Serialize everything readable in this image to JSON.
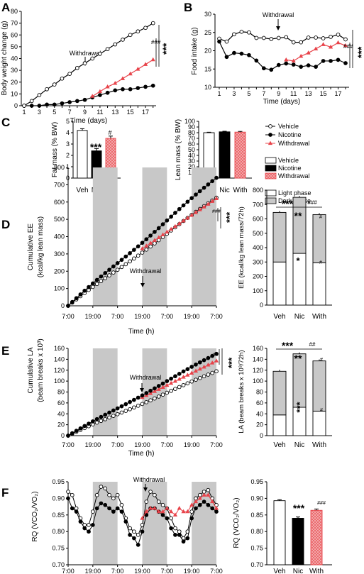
{
  "colors": {
    "vehicle": "#ffffff",
    "nicotine": "#000000",
    "withdrawal": "#e8434a",
    "shade": "#c8c8c8",
    "withdrawal_fill": "#f08a8a"
  },
  "stars3": "***",
  "stars2": "**",
  "hash3": "###",
  "hash2": "##",
  "hash1": "#",
  "star1": "*",
  "legend_lines": [
    "Vehicle",
    "Nicotine",
    "Withdrawal"
  ],
  "legend_bars": [
    "Vehicle",
    "Nicotine",
    "Withdrawal"
  ],
  "legend_phase": [
    "Light phase",
    "Dark phase"
  ],
  "panels": [
    {
      "letter": "A",
      "ylabel": "Body weight change (g)",
      "xlabel": "Time (days)",
      "annotation": "Withdrawal",
      "yticks": [
        "0",
        "10",
        "20",
        "30",
        "40",
        "50",
        "60",
        "70",
        "80"
      ],
      "xticks": [
        "1",
        "3",
        "5",
        "7",
        "9",
        "11",
        "13",
        "15",
        "17"
      ]
    },
    {
      "letter": "B",
      "ylabel": "Food intake (g)",
      "xlabel": "Time (days)",
      "annotation": "Withdrawal",
      "yticks": [
        "10",
        "15",
        "20",
        "25",
        "30"
      ],
      "xticks": [
        "1",
        "3",
        "5",
        "7",
        "9",
        "11",
        "13",
        "15",
        "17"
      ]
    },
    {
      "letter": "C"
    },
    {
      "letter": "D",
      "ylabel": [
        "Cumulative EE",
        "(kcal/kg lean mass)"
      ],
      "xlabel": "Time (h)",
      "annotation": "Withdrawal",
      "yticks": [
        "0",
        "100",
        "200",
        "300",
        "400",
        "500",
        "600",
        "700",
        "800"
      ]
    },
    {
      "letter": "E",
      "ylabel": [
        "Cumulative LA",
        "(beam breaks x 10³)"
      ],
      "xlabel": "Time (h)",
      "annotation": "Withdrawal",
      "yticks": [
        "0",
        "20",
        "40",
        "60",
        "80",
        "100",
        "120",
        "140",
        "160"
      ]
    },
    {
      "letter": "F",
      "ylabel": "RQ (VCO₂/VO₂)",
      "annotation": "Withdrawal",
      "yticks": [
        "0.70",
        "0.75",
        "0.80",
        "0.85",
        "0.90",
        "0.95"
      ]
    }
  ],
  "time_ticks": [
    "7:00",
    "19:00",
    "7:00",
    "19:00",
    "7:00",
    "19:00",
    "7:00"
  ],
  "groups": [
    "Veh",
    "Nic",
    "With"
  ],
  "chart_data": [
    {
      "type": "line",
      "panel": "A",
      "xlabel": "Time (days)",
      "ylabel": "Body weight change (g)",
      "xlim": [
        1,
        18
      ],
      "ylim": [
        0,
        80
      ],
      "series": [
        {
          "name": "Vehicle",
          "x": [
            1,
            2,
            3,
            4,
            5,
            6,
            7,
            8,
            9,
            10,
            11,
            12,
            13,
            14,
            15,
            16,
            17,
            18
          ],
          "values": [
            0,
            4,
            9,
            14,
            18,
            23,
            27,
            32,
            36,
            40,
            44,
            48,
            52,
            56,
            60,
            63,
            66,
            70
          ]
        },
        {
          "name": "Nicotine",
          "x": [
            1,
            2,
            3,
            4,
            5,
            6,
            7,
            8,
            9,
            10,
            11,
            12,
            13,
            14,
            15,
            16,
            17,
            18
          ],
          "values": [
            0,
            0,
            0,
            1,
            1,
            2,
            3,
            4,
            5,
            7,
            9,
            11,
            13,
            14,
            14,
            15,
            16,
            17
          ]
        },
        {
          "name": "Withdrawal",
          "x": [
            10,
            11,
            12,
            13,
            14,
            15,
            16,
            17,
            18
          ],
          "values": [
            8,
            12,
            16,
            19,
            23,
            27,
            31,
            35,
            39
          ]
        }
      ]
    },
    {
      "type": "line",
      "panel": "B",
      "xlabel": "Time (days)",
      "ylabel": "Food intake (g)",
      "xlim": [
        1,
        18
      ],
      "ylim": [
        10,
        30
      ],
      "series": [
        {
          "name": "Vehicle",
          "x": [
            1,
            2,
            3,
            4,
            5,
            6,
            7,
            8,
            9,
            10,
            11,
            12,
            13,
            14,
            15,
            16,
            17,
            18
          ],
          "values": [
            23.3,
            22.5,
            24.5,
            25.2,
            25,
            23.5,
            23.5,
            23.2,
            23.5,
            23.7,
            22.3,
            22.3,
            23.6,
            23.6,
            23.4,
            23.8,
            24.4,
            23.1
          ]
        },
        {
          "name": "Nicotine",
          "x": [
            1,
            2,
            3,
            4,
            5,
            6,
            7,
            8,
            9,
            10,
            11,
            12,
            13,
            14,
            15,
            16,
            17,
            18
          ],
          "values": [
            22.5,
            18.3,
            19.4,
            19.2,
            18.8,
            17.3,
            15.2,
            14.8,
            16.1,
            16.5,
            16.2,
            15.6,
            16.0,
            15.6,
            17.2,
            17.2,
            17.5,
            16.6
          ]
        },
        {
          "name": "Withdrawal",
          "x": [
            10,
            11,
            12,
            13,
            14,
            15,
            16,
            17,
            18
          ],
          "values": [
            17.5,
            17.2,
            18.5,
            19.4,
            20.5,
            21.7,
            21.0,
            22.2,
            21.4
          ]
        }
      ]
    },
    {
      "type": "bar",
      "panel": "C-fat",
      "ylabel": "Fat mass (% BW)",
      "categories": [
        "Veh",
        "Nic",
        "With"
      ],
      "values": [
        4.2,
        2.4,
        3.5
      ],
      "errors": [
        0.15,
        0.2,
        0.2
      ],
      "ylim": [
        0,
        5
      ],
      "yticks": [
        "0",
        "1",
        "2",
        "3",
        "4",
        "5"
      ]
    },
    {
      "type": "bar",
      "panel": "C-lean",
      "ylabel": "Lean mass (% BW)",
      "categories": [
        "Veh",
        "Nic",
        "With"
      ],
      "values": [
        80,
        81.5,
        81
      ],
      "errors": [
        0.8,
        1,
        1.2
      ],
      "ylim": [
        0,
        100
      ],
      "yticks": [
        "0",
        "10",
        "20",
        "30",
        "40",
        "50",
        "60",
        "70",
        "80",
        "90",
        "100"
      ]
    },
    {
      "type": "line",
      "panel": "D",
      "xlabel": "Time (h)",
      "ylabel": "Cumulative EE (kcal/kg lean mass)",
      "ylim": [
        0,
        800
      ],
      "series": [
        {
          "name": "Nicotine",
          "x_hours": [
            0,
            72
          ],
          "values": [
            0,
            740
          ]
        },
        {
          "name": "Vehicle",
          "x_hours": [
            0,
            72
          ],
          "values": [
            0,
            625
          ]
        },
        {
          "name": "Withdrawal",
          "x_hours": [
            36,
            72
          ],
          "values": [
            330,
            620
          ]
        }
      ]
    },
    {
      "type": "bar",
      "panel": "D-bar",
      "ylabel": "EE (kcal/kg lean mass/72h)",
      "categories": [
        "Veh",
        "Nic",
        "With"
      ],
      "ylim": [
        0,
        800
      ],
      "yticks": [
        "0",
        "100",
        "200",
        "300",
        "400",
        "500",
        "600",
        "700",
        "800"
      ],
      "series": [
        {
          "name": "Light phase",
          "values": [
            300,
            360,
            295
          ]
        },
        {
          "name": "Dark phase",
          "values": [
            345,
            390,
            335
          ]
        }
      ]
    },
    {
      "type": "line",
      "panel": "E",
      "xlabel": "Time (h)",
      "ylabel": "Cumulative LA (beam breaks x 10³)",
      "ylim": [
        0,
        160
      ],
      "series": [
        {
          "name": "Nicotine",
          "x_hours": [
            0,
            72
          ],
          "values": [
            0,
            150
          ]
        },
        {
          "name": "Vehicle",
          "x_hours": [
            0,
            72
          ],
          "values": [
            0,
            118
          ]
        },
        {
          "name": "Withdrawal",
          "x_hours": [
            36,
            72
          ],
          "values": [
            70,
            137
          ]
        }
      ]
    },
    {
      "type": "bar",
      "panel": "E-bar",
      "ylabel": "LA (beam breaks x 10³/72h)",
      "categories": [
        "Veh",
        "Nic",
        "With"
      ],
      "ylim": [
        0,
        160
      ],
      "yticks": [
        "0",
        "20",
        "40",
        "60",
        "80",
        "100",
        "120",
        "140",
        "160"
      ],
      "series": [
        {
          "name": "Light phase",
          "values": [
            38,
            52,
            45
          ]
        },
        {
          "name": "Dark phase",
          "values": [
            80,
            98,
            92
          ]
        }
      ]
    },
    {
      "type": "line",
      "panel": "F",
      "ylabel": "RQ (VCO₂/VO₂)",
      "ylim": [
        0.7,
        0.95
      ],
      "series": [
        {
          "name": "Vehicle",
          "x_hours": [
            0,
            2,
            4,
            6,
            8,
            10,
            12,
            14,
            16,
            18,
            20,
            22,
            24,
            26,
            28,
            30,
            32,
            34,
            36,
            38,
            40,
            42,
            44,
            46,
            48,
            50,
            52,
            54,
            56,
            58,
            60,
            62,
            64,
            66,
            68,
            70,
            72
          ],
          "values": [
            0.92,
            0.91,
            0.87,
            0.84,
            0.82,
            0.82,
            0.86,
            0.91,
            0.935,
            0.93,
            0.91,
            0.9,
            0.91,
            0.88,
            0.84,
            0.81,
            0.8,
            0.79,
            0.82,
            0.89,
            0.92,
            0.91,
            0.89,
            0.88,
            0.87,
            0.84,
            0.81,
            0.8,
            0.78,
            0.8,
            0.86,
            0.9,
            0.91,
            0.92,
            0.925,
            0.9,
            0.88
          ]
        },
        {
          "name": "Nicotine",
          "x_hours": [
            0,
            2,
            4,
            6,
            8,
            10,
            12,
            14,
            16,
            18,
            20,
            22,
            24,
            26,
            28,
            30,
            32,
            34,
            36,
            38,
            40,
            42,
            44,
            46,
            48,
            50,
            52,
            54,
            56,
            58,
            60,
            62,
            64,
            66,
            68,
            70,
            72
          ],
          "values": [
            0.9,
            0.87,
            0.86,
            0.83,
            0.81,
            0.8,
            0.82,
            0.87,
            0.885,
            0.88,
            0.87,
            0.86,
            0.87,
            0.86,
            0.83,
            0.79,
            0.78,
            0.76,
            0.8,
            0.85,
            0.87,
            0.87,
            0.86,
            0.85,
            0.84,
            0.81,
            0.79,
            0.79,
            0.77,
            0.78,
            0.84,
            0.87,
            0.88,
            0.89,
            0.88,
            0.87,
            0.86
          ]
        },
        {
          "name": "Withdrawal",
          "x_hours": [
            36,
            38,
            40,
            42,
            44,
            46,
            48,
            50,
            52,
            54,
            56,
            58,
            60,
            62,
            64,
            66,
            68,
            70,
            72
          ],
          "values": [
            0.84,
            0.86,
            0.87,
            0.87,
            0.86,
            0.86,
            0.87,
            0.86,
            0.85,
            0.87,
            0.86,
            0.86,
            0.88,
            0.89,
            0.9,
            0.91,
            0.91,
            0.89,
            0.87
          ]
        }
      ]
    },
    {
      "type": "bar",
      "panel": "F-bar",
      "ylabel": "RQ (VCO₂/VO₂)",
      "categories": [
        "Veh",
        "Nic",
        "With"
      ],
      "values": [
        0.893,
        0.84,
        0.864
      ],
      "errors": [
        0.003,
        0.004,
        0.004
      ],
      "ylim": [
        0.7,
        0.95
      ],
      "yticks": [
        "0.70",
        "0.75",
        "0.80",
        "0.85",
        "0.90",
        "0.95"
      ]
    }
  ]
}
